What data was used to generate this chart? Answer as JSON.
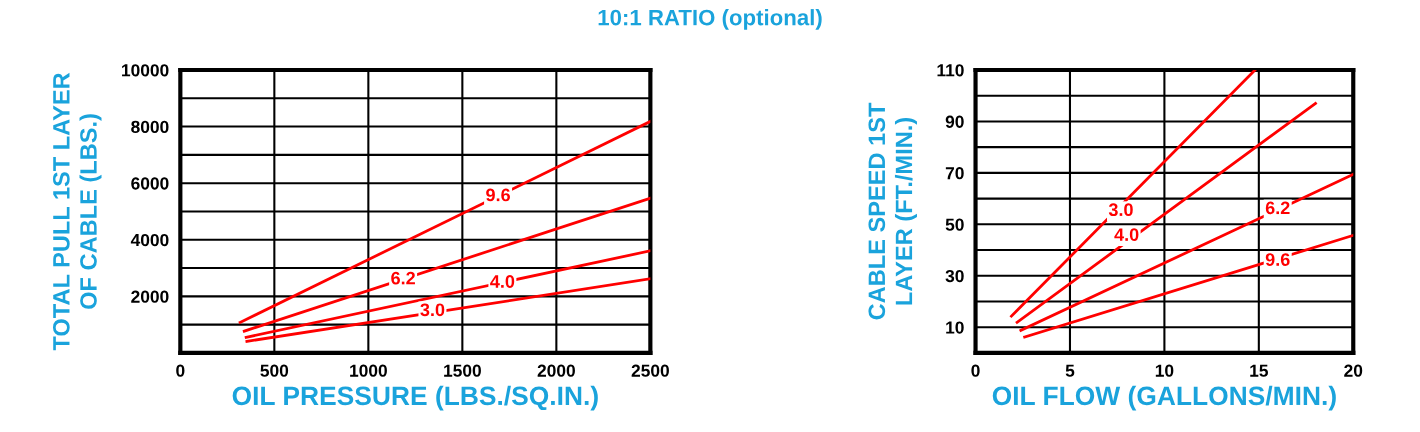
{
  "chart_data": [
    {
      "type": "line",
      "title": "10:1 RATIO (optional)",
      "xlabel": "OIL PRESSURE (LBS./SQ.IN.)",
      "ylabel": "TOTAL PULL 1ST LAYER\nOF CABLE (LBS.)",
      "xlim": [
        0,
        2500
      ],
      "xticks": [
        0,
        500,
        1000,
        1500,
        2000,
        2500
      ],
      "ylim": [
        0,
        10000
      ],
      "yticks": [
        {
          "value": 0,
          "label": null
        },
        {
          "value": 1000,
          "label": null
        },
        2000,
        {
          "value": 3000,
          "label": null
        },
        4000,
        {
          "value": 5000,
          "label": null
        },
        6000,
        {
          "value": 7000,
          "label": null
        },
        8000,
        {
          "value": 9000,
          "label": null
        },
        10000
      ],
      "grid": true,
      "legend": false,
      "marker": "none",
      "line_style": "solid",
      "series": [
        {
          "color": "#ff0000",
          "x": [
            318,
            2500
          ],
          "values": [
            1080,
            8180
          ]
        },
        {
          "color": "#ff0000",
          "x": [
            340,
            2500
          ],
          "values": [
            770,
            5470
          ]
        },
        {
          "color": "#ff0000",
          "x": [
            350,
            2500
          ],
          "values": [
            550,
            3610
          ]
        },
        {
          "color": "#ff0000",
          "x": [
            354,
            2500
          ],
          "values": [
            410,
            2620
          ]
        }
      ],
      "annotations": [
        {
          "text": "9.6",
          "x": 1690,
          "y": 5530
        },
        {
          "text": "6.2",
          "x": 1185,
          "y": 2590
        },
        {
          "text": "4.0",
          "x": 1713,
          "y": 2470
        },
        {
          "text": "3.0",
          "x": 1341,
          "y": 1470
        }
      ]
    },
    {
      "type": "line",
      "xlabel": "OIL FLOW (GALLONS/MIN.)",
      "ylabel": "CABLE SPEED 1ST\nLAYER (FT./MIN.)",
      "xlim": [
        0,
        20
      ],
      "xticks": [
        0,
        5,
        10,
        15,
        20
      ],
      "ylim": [
        0,
        110
      ],
      "yticks": [
        {
          "value": 0,
          "label": null
        },
        10,
        {
          "value": 20,
          "label": null
        },
        30,
        {
          "value": 40,
          "label": null
        },
        50,
        {
          "value": 60,
          "label": null
        },
        70,
        {
          "value": 80,
          "label": null
        },
        90,
        {
          "value": 100,
          "label": null
        },
        110
      ],
      "grid": true,
      "legend": false,
      "marker": "none",
      "line_style": "solid",
      "series": [
        {
          "color": "#ff0000",
          "x": [
            1.9,
            14.8
          ],
          "values": [
            14.3,
            110
          ]
        },
        {
          "color": "#ff0000",
          "x": [
            2.2,
            18
          ],
          "values": [
            11.9,
            97
          ]
        },
        {
          "color": "#ff0000",
          "x": [
            2.4,
            20
          ],
          "values": [
            8.8,
            69.4
          ]
        },
        {
          "color": "#ff0000",
          "x": [
            2.6,
            20
          ],
          "values": [
            6.2,
            45.7
          ]
        }
      ],
      "annotations": [
        {
          "text": "3.0",
          "x": 7.7,
          "y": 55.1
        },
        {
          "text": "4.0",
          "x": 8.0,
          "y": 45.4
        },
        {
          "text": "6.2",
          "x": 16.0,
          "y": 55.8
        },
        {
          "text": "9.6",
          "x": 16.0,
          "y": 35.7
        }
      ]
    }
  ]
}
